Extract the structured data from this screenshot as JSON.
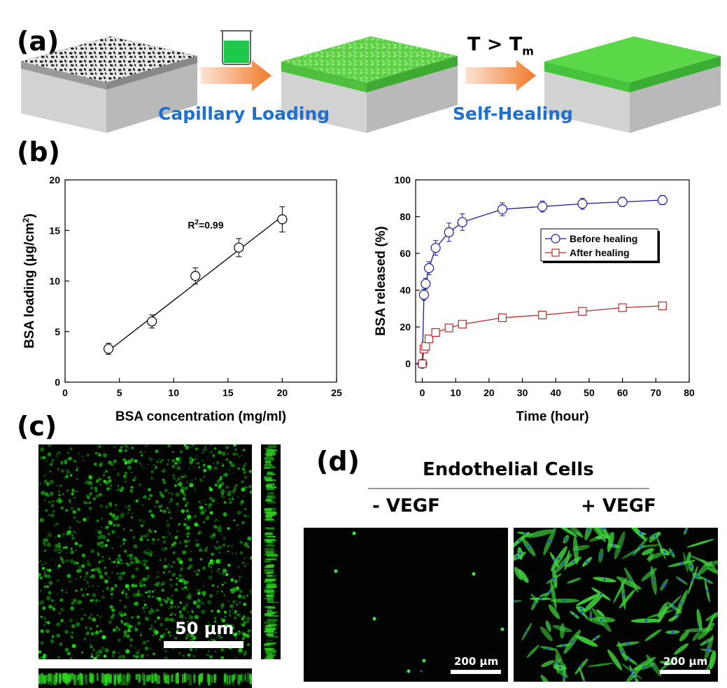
{
  "panels": {
    "a": {
      "label": "(a)",
      "step1": "Capillary Loading",
      "step2_condition": "T > T",
      "step2_condition_sub": "m",
      "step2": "Self-Healing",
      "colors": {
        "green": "#45c43b",
        "green_light": "#7ee063",
        "arrow": "#f07a2a",
        "slab_side": "#cfcfcf"
      }
    },
    "b": {
      "label": "(b)"
    },
    "c": {
      "label": "(c)",
      "scale_bar": "50 μm"
    },
    "d": {
      "label": "(d)",
      "title": "Endothelial Cells",
      "left_label": "- VEGF",
      "right_label": "+ VEGF",
      "scale_bar_left": "200 μm",
      "scale_bar_right": "200 μm"
    }
  },
  "chart_data": [
    {
      "type": "scatter",
      "title": "",
      "xlabel": "BSA concentration (mg/ml)",
      "ylabel": "BSA loading (μg/cm",
      "ylabel_sup": "2",
      "ylabel_end": ")",
      "xlim": [
        0,
        25
      ],
      "ylim": [
        0,
        20
      ],
      "xticks": [
        0,
        5,
        10,
        15,
        20,
        25
      ],
      "yticks": [
        0,
        5,
        10,
        15,
        20
      ],
      "annotation": "R",
      "annotation_sup": "2",
      "annotation_end": "=0.99",
      "series": [
        {
          "name": "BSA loading",
          "x": [
            4,
            8,
            12,
            16,
            20
          ],
          "y": [
            3.3,
            6.0,
            10.5,
            13.3,
            16.1
          ],
          "err": [
            0.55,
            0.65,
            0.8,
            0.9,
            1.25
          ]
        }
      ],
      "fit": {
        "x": [
          4,
          20
        ],
        "y": [
          3.1,
          16.4
        ]
      }
    },
    {
      "type": "line",
      "title": "",
      "xlabel": "Time (hour)",
      "ylabel": "BSA released (%)",
      "xlim": [
        -2,
        80
      ],
      "ylim": [
        -10,
        100
      ],
      "xticks": [
        0,
        10,
        20,
        30,
        40,
        50,
        60,
        70,
        80
      ],
      "yticks": [
        0,
        20,
        40,
        60,
        80,
        100
      ],
      "legend": "right-middle",
      "series": [
        {
          "name": "Before healing",
          "color": "#1a1a9c",
          "marker": "circle",
          "x": [
            0,
            0.5,
            1,
            2,
            4,
            8,
            12,
            24,
            36,
            48,
            60,
            72
          ],
          "y": [
            0,
            37.5,
            43.5,
            52,
            63,
            71.5,
            77,
            84,
            85.5,
            87,
            88,
            89
          ],
          "err": [
            0,
            3,
            3,
            3.5,
            4,
            5,
            4.5,
            3.5,
            3,
            3,
            2.5,
            2.5
          ]
        },
        {
          "name": "After healing",
          "color": "#b82a2a",
          "marker": "square",
          "x": [
            0,
            0.5,
            1,
            2,
            4,
            8,
            12,
            24,
            36,
            48,
            60,
            72
          ],
          "y": [
            0,
            8,
            9.5,
            13.5,
            17,
            19.5,
            21.5,
            25,
            26.5,
            28.5,
            30.5,
            31.5
          ],
          "err": [
            0,
            1.5,
            1.5,
            1.5,
            1.5,
            1.5,
            1.5,
            1.5,
            1.5,
            1.5,
            1.5,
            1.5
          ]
        }
      ]
    }
  ]
}
